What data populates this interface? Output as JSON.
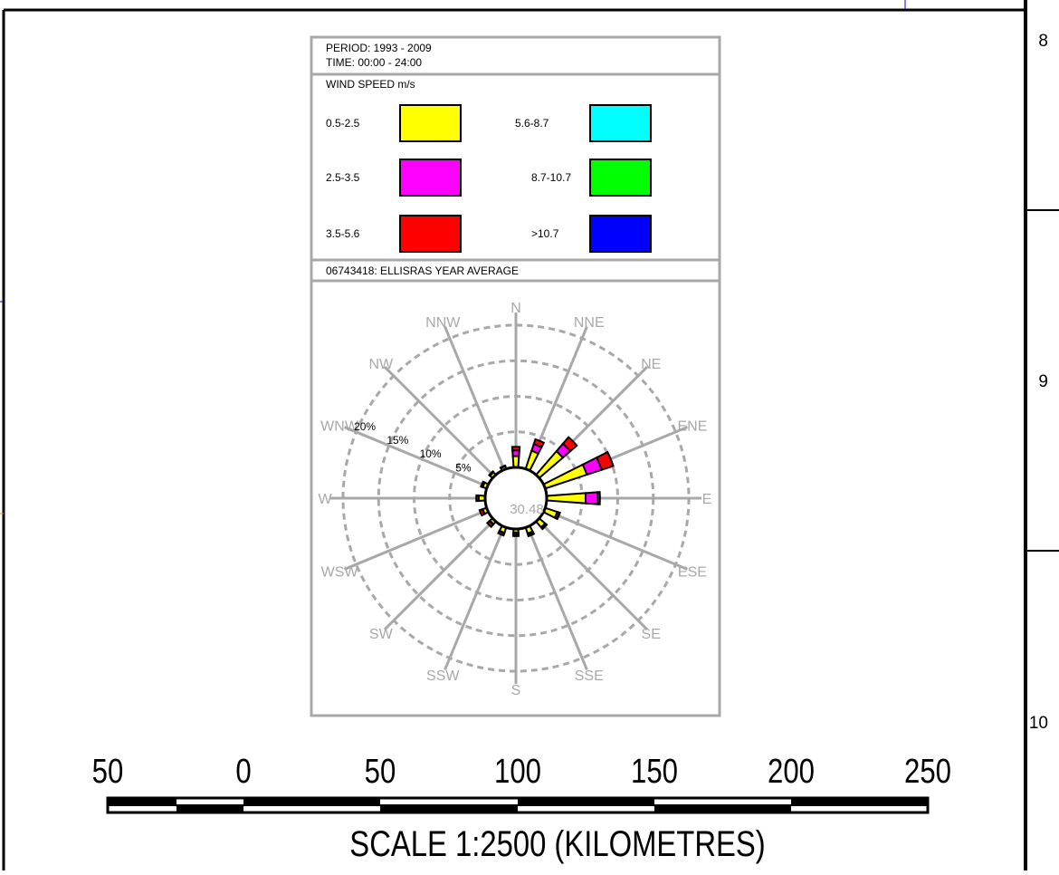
{
  "header": {
    "period": "PERIOD: 1993 - 2009",
    "time": "TIME:  00:00 - 24:00"
  },
  "legend": {
    "title": "WIND SPEED m/s",
    "items": [
      {
        "label": "0.5-2.5",
        "color": "#ffff00"
      },
      {
        "label": "2.5-3.5",
        "color": "#ff00ff"
      },
      {
        "label": "3.5-5.6",
        "color": "#ff0000"
      },
      {
        "label": "5.6-8.7",
        "color": "#00ffff"
      },
      {
        "label": "8.7-10.7",
        "color": "#00ff00"
      },
      {
        "label": ">10.7",
        "color": "#0000ff"
      }
    ]
  },
  "station": "06743418: ELLISRAS YEAR AVERAGE",
  "calm": "30.48",
  "side_labels": [
    "8",
    "9",
    "10"
  ],
  "scale_bar": {
    "numbers": [
      "50",
      "0",
      "50",
      "100",
      "150",
      "200",
      "250"
    ],
    "title": "SCALE 1:2500 (KILOMETRES)"
  },
  "chart_data": {
    "type": "wind-rose",
    "directions": [
      "N",
      "NNE",
      "NE",
      "ENE",
      "E",
      "ESE",
      "SE",
      "SSE",
      "S",
      "SSW",
      "SW",
      "WSW",
      "W",
      "WNW",
      "NW",
      "NNW"
    ],
    "rings": [
      {
        "value": 5,
        "label": "5%"
      },
      {
        "value": 10,
        "label": "10%"
      },
      {
        "value": 15,
        "label": "15%"
      },
      {
        "value": 20,
        "label": "20%"
      }
    ],
    "calm_percent": 30.48,
    "series": [
      {
        "name": "0.5-2.5",
        "color": "#ffff00",
        "values": [
          1.6,
          2.7,
          4.4,
          6.2,
          5.5,
          1.8,
          1.1,
          0.9,
          0.5,
          0.8,
          0.5,
          0.6,
          0.9,
          0.6,
          0.5,
          0.4
        ]
      },
      {
        "name": "2.5-3.5",
        "color": "#ff00ff",
        "values": [
          0.8,
          1.0,
          1.4,
          2.2,
          1.7,
          0.3,
          0.2,
          0.2,
          0.3,
          0.1,
          0.1,
          0.05,
          0.05,
          0.05,
          0.05,
          0.05
        ]
      },
      {
        "name": "3.5-5.6",
        "color": "#ff0000",
        "values": [
          0.5,
          0.7,
          1.2,
          1.7,
          0.3,
          0.1,
          0.1,
          0.2,
          0.2,
          0.3,
          0.4,
          0.4,
          0.3,
          0.2,
          0.1,
          0.05
        ]
      }
    ]
  }
}
